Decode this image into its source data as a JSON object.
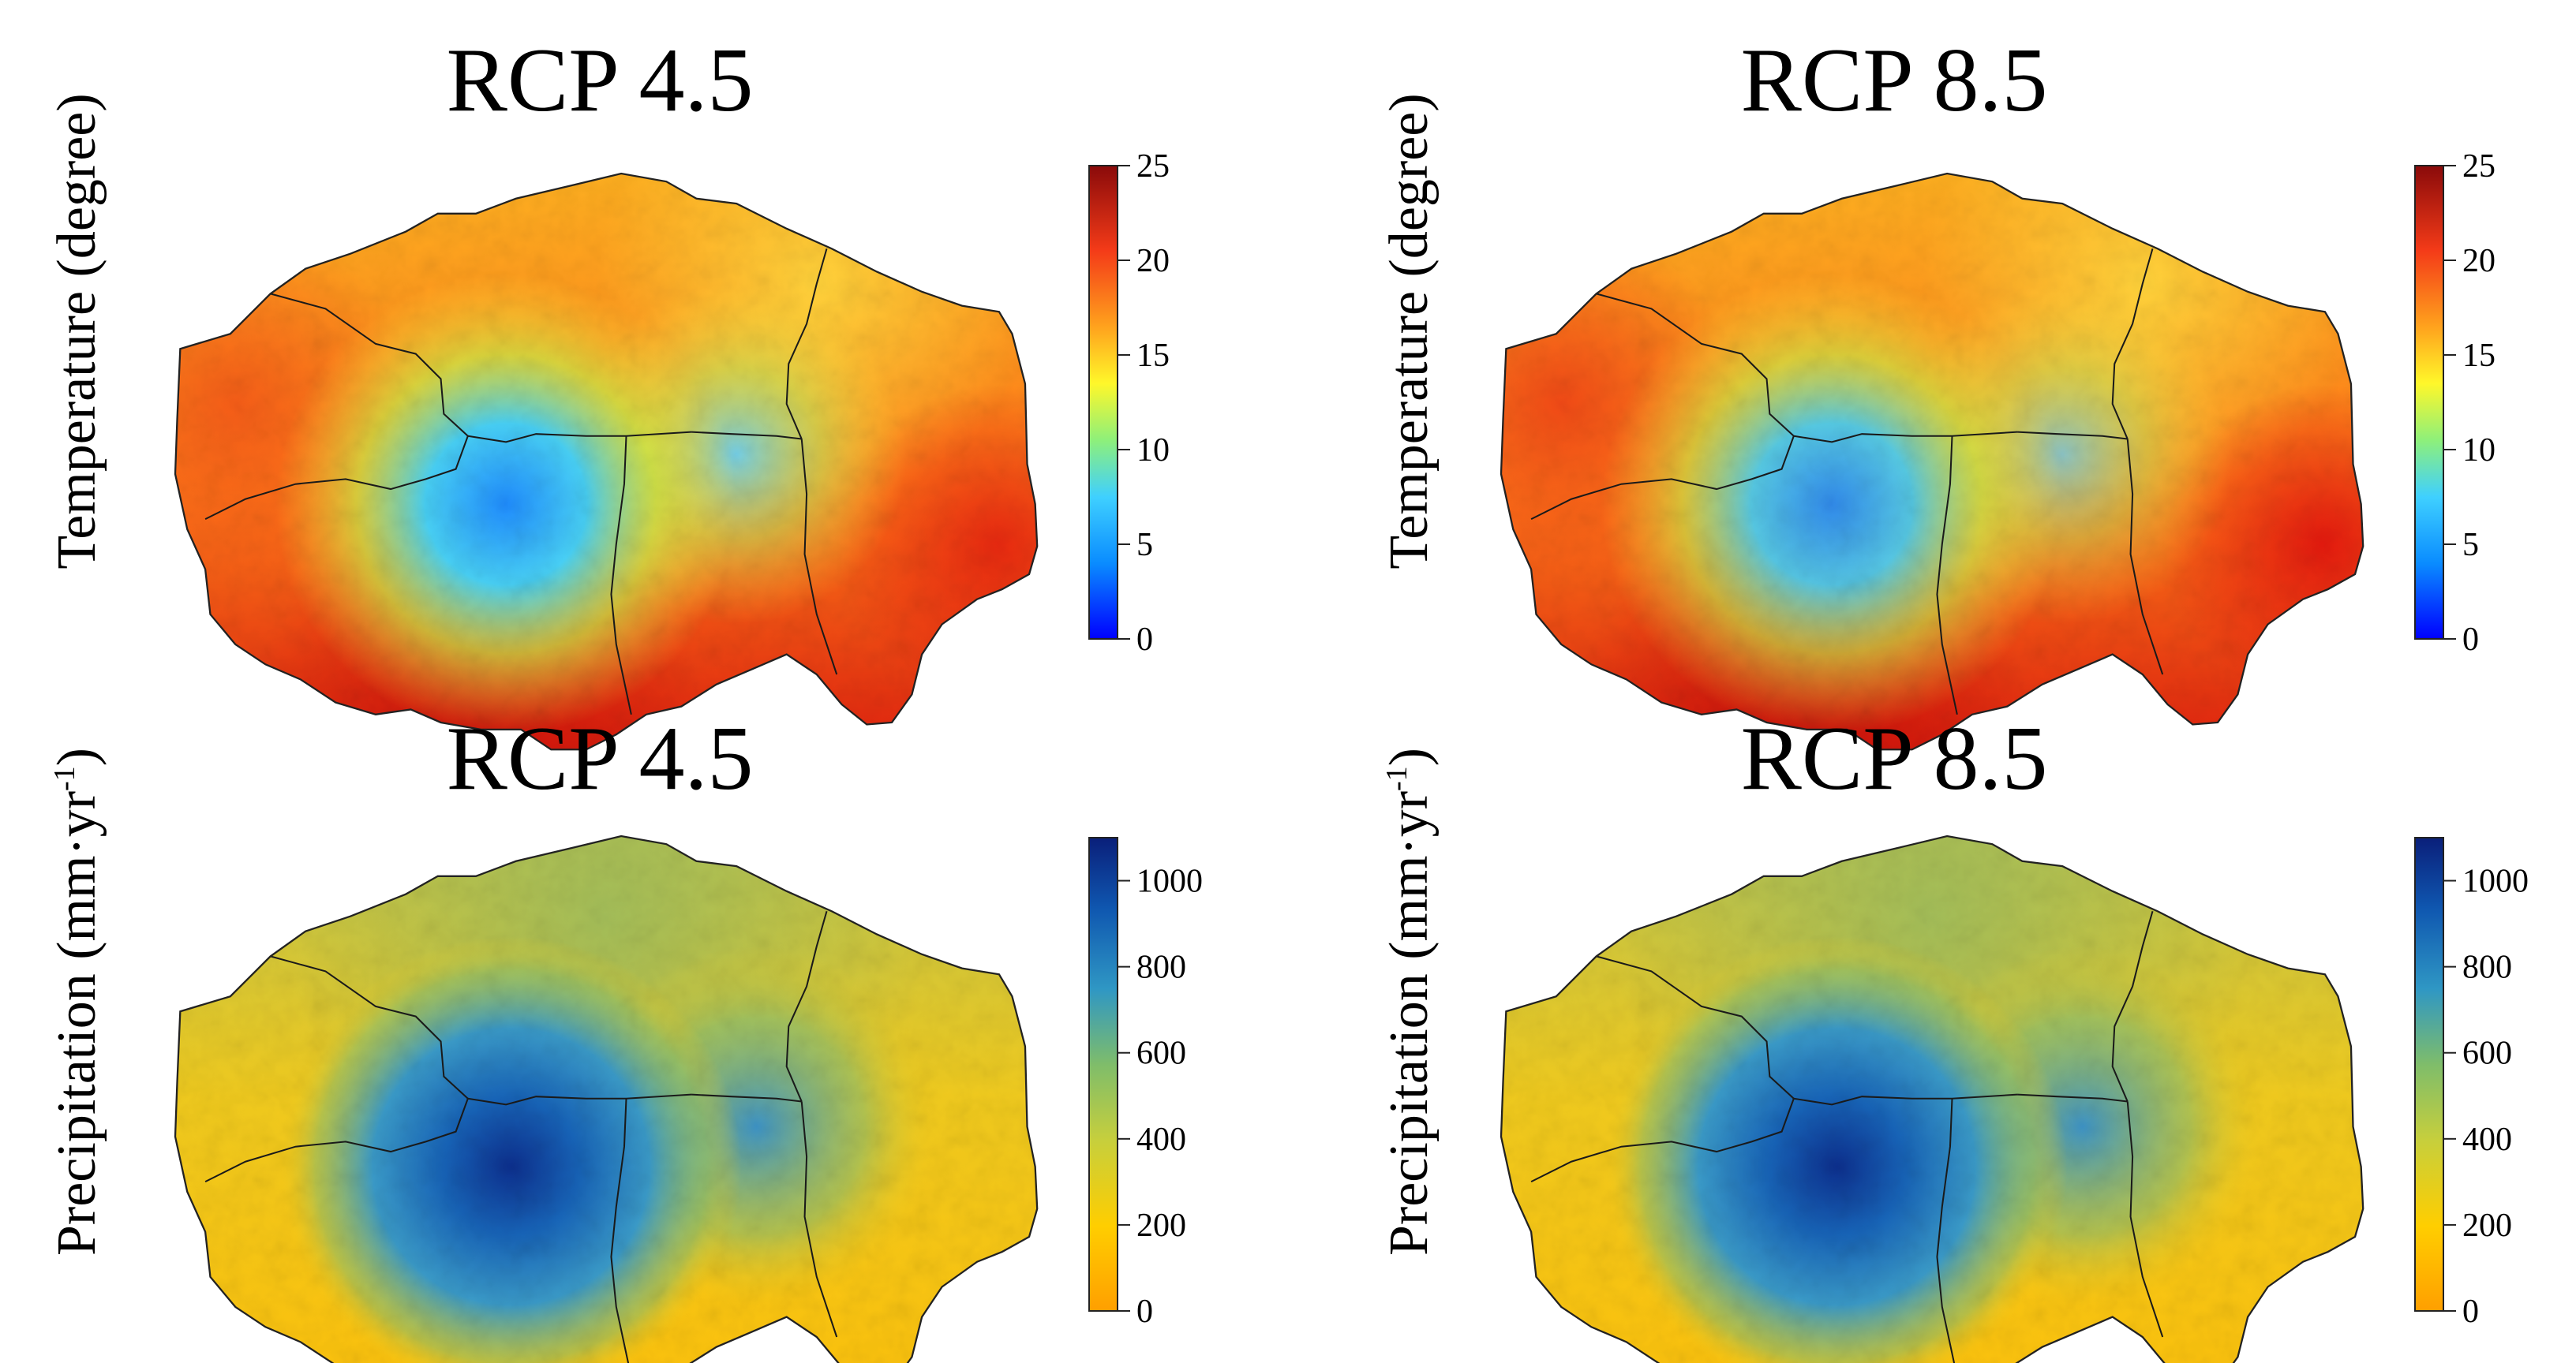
{
  "figure": {
    "panels": [
      {
        "id": "temp-rcp45",
        "title": "RCP 4.5",
        "ylabel_main": "Temperature (degree)",
        "ylabel_sup": "",
        "ylabel_tail": "",
        "variable": "temperature",
        "colorbar": {
          "min": 0,
          "max": 25,
          "ticks": [
            "0",
            "5",
            "10",
            "15",
            "20",
            "25"
          ],
          "colors": [
            "#0000ff",
            "#0a8cff",
            "#3fd0ff",
            "#8ef07a",
            "#fff72a",
            "#ffa21d",
            "#f43b18",
            "#8a0a0a"
          ]
        }
      },
      {
        "id": "temp-rcp85",
        "title": "RCP 8.5",
        "ylabel_main": "Temperature (degree)",
        "ylabel_sup": "",
        "ylabel_tail": "",
        "variable": "temperature",
        "colorbar": {
          "min": 0,
          "max": 25,
          "ticks": [
            "0",
            "5",
            "10",
            "15",
            "20",
            "25"
          ],
          "colors": [
            "#0000ff",
            "#0a8cff",
            "#3fd0ff",
            "#8ef07a",
            "#fff72a",
            "#ffa21d",
            "#f43b18",
            "#8a0a0a"
          ]
        }
      },
      {
        "id": "precip-rcp45",
        "title": "RCP 4.5",
        "ylabel_main": "Precipitation (mm·yr",
        "ylabel_sup": "-1",
        "ylabel_tail": ")",
        "variable": "precipitation",
        "colorbar": {
          "min": 0,
          "max": 1100,
          "ticks": [
            "0",
            "200",
            "400",
            "600",
            "800",
            "1000"
          ],
          "colors": [
            "#ff9f00",
            "#ffce00",
            "#c7cf3c",
            "#7fbd6a",
            "#2f97c4",
            "#0f57b0",
            "#0a1f7a"
          ]
        }
      },
      {
        "id": "precip-rcp85",
        "title": "RCP 8.5",
        "ylabel_main": "Precipitation (mm·yr",
        "ylabel_sup": "-1",
        "ylabel_tail": ")",
        "variable": "precipitation",
        "colorbar": {
          "min": 0,
          "max": 1100,
          "ticks": [
            "0",
            "200",
            "400",
            "600",
            "800",
            "1000"
          ],
          "colors": [
            "#ff9f00",
            "#ffce00",
            "#c7cf3c",
            "#7fbd6a",
            "#2f97c4",
            "#0f57b0",
            "#0a1f7a"
          ]
        }
      }
    ]
  }
}
